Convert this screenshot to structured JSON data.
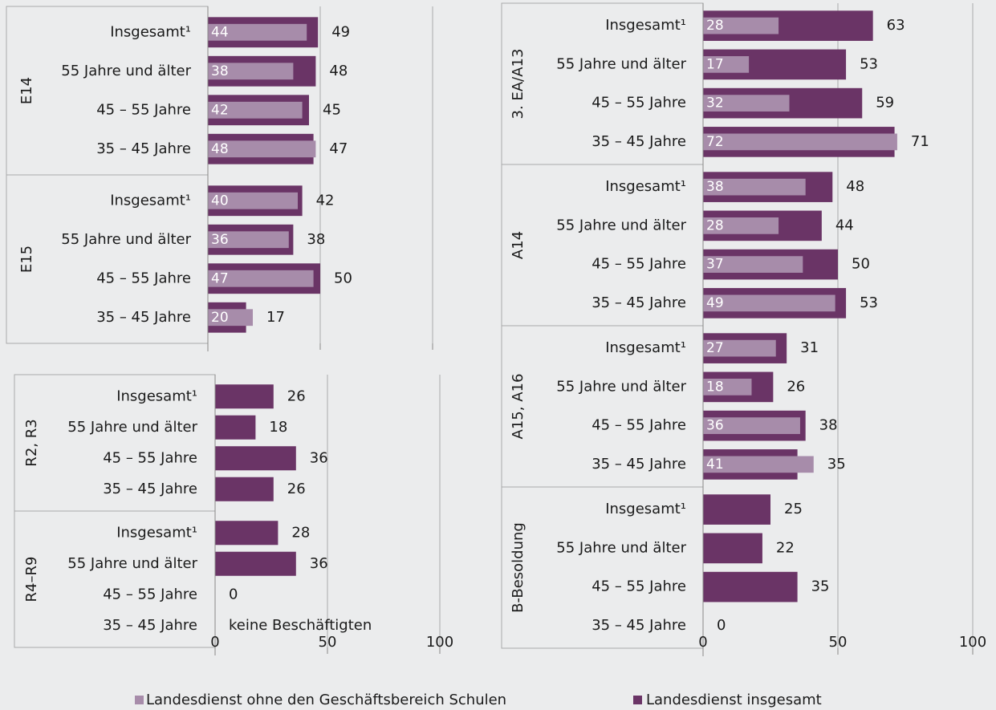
{
  "chart_data": [
    {
      "type": "bar",
      "orientation": "horizontal",
      "groups": [
        {
          "name": "E14",
          "categories": [
            "Insgesamt¹",
            "55 Jahre und älter",
            "45 – 55 Jahre",
            "35 – 45 Jahre"
          ],
          "insgesamt": [
            49,
            48,
            45,
            47
          ],
          "ohne_schulen": [
            44,
            38,
            42,
            48
          ]
        },
        {
          "name": "E15",
          "categories": [
            "Insgesamt¹",
            "55 Jahre und älter",
            "45 – 55 Jahre",
            "35 – 45 Jahre"
          ],
          "insgesamt": [
            42,
            38,
            50,
            17
          ],
          "ohne_schulen": [
            40,
            36,
            47,
            20
          ]
        }
      ],
      "xlim": [
        0,
        100
      ],
      "grid": true
    },
    {
      "type": "bar",
      "orientation": "horizontal",
      "groups": [
        {
          "name": "R2, R3",
          "categories": [
            "Insgesamt¹",
            "55 Jahre und älter",
            "45 – 55 Jahre",
            "35 – 45 Jahre"
          ],
          "insgesamt": [
            26,
            18,
            36,
            26
          ],
          "labels": [
            "26",
            "18",
            "36",
            "26"
          ]
        },
        {
          "name": "R4–R9",
          "categories": [
            "Insgesamt¹",
            "55 Jahre und älter",
            "45 – 55 Jahre",
            "35 – 45 Jahre"
          ],
          "insgesamt": [
            28,
            36,
            0,
            null
          ],
          "labels": [
            "28",
            "36",
            "0",
            "keine Beschäftigten"
          ]
        }
      ],
      "xlim": [
        0,
        100
      ],
      "xticks": [
        "0",
        "50",
        "100"
      ],
      "grid": true
    },
    {
      "type": "bar",
      "orientation": "horizontal",
      "groups": [
        {
          "name": "3. EA/A13",
          "categories": [
            "Insgesamt¹",
            "55 Jahre und älter",
            "45 – 55 Jahre",
            "35 – 45 Jahre"
          ],
          "insgesamt": [
            63,
            53,
            59,
            71
          ],
          "ohne_schulen": [
            28,
            17,
            32,
            72
          ]
        },
        {
          "name": "A14",
          "categories": [
            "Insgesamt¹",
            "55 Jahre und älter",
            "45 – 55 Jahre",
            "35 – 45 Jahre"
          ],
          "insgesamt": [
            48,
            44,
            50,
            53
          ],
          "ohne_schulen": [
            38,
            28,
            37,
            49
          ]
        },
        {
          "name": "A15, A16",
          "categories": [
            "Insgesamt¹",
            "55 Jahre und älter",
            "45 – 55 Jahre",
            "35 – 45 Jahre"
          ],
          "insgesamt": [
            31,
            26,
            38,
            35
          ],
          "ohne_schulen": [
            27,
            18,
            36,
            41
          ]
        },
        {
          "name": "B-Besoldung",
          "categories": [
            "Insgesamt¹",
            "55 Jahre und älter",
            "45 – 55 Jahre",
            "35 – 45 Jahre"
          ],
          "insgesamt": [
            25,
            22,
            35,
            0
          ]
        }
      ],
      "xlim": [
        0,
        100
      ],
      "xticks": [
        "0",
        "50",
        "100"
      ],
      "grid": true
    }
  ],
  "legend": {
    "items": [
      {
        "label": "Landesdienst ohne den Geschäftsbereich Schulen",
        "color": "#a78caa"
      },
      {
        "label": "Landesdienst insgesamt",
        "color": "#6a3466"
      }
    ],
    "placement": "bottom"
  },
  "colors": {
    "insgesamt": "#6a3466",
    "ohne_schulen": "#a78caa",
    "grid": "#aaaaaa",
    "background": "#ebeced"
  }
}
